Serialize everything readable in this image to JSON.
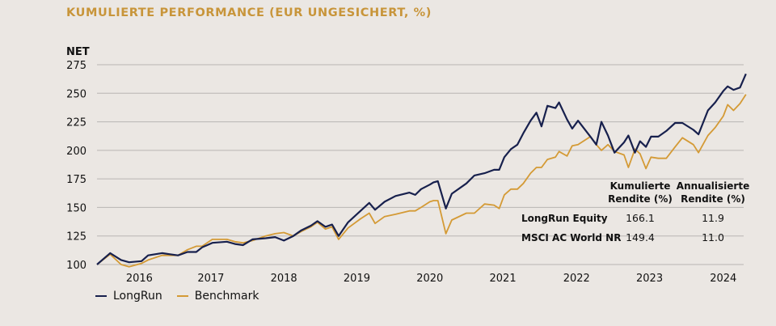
{
  "chart_data": {
    "type": "line",
    "title": "KUMULIERTE PERFORMANCE (EUR UNGESICHERT, %)",
    "ylabel": "NET",
    "xlabel": "",
    "ylim": [
      100,
      275
    ],
    "xlim": [
      2015.5,
      2024.35
    ],
    "yticks": [
      100,
      125,
      150,
      175,
      200,
      225,
      250,
      275
    ],
    "xticks": [
      {
        "label": "2016",
        "x": 2016.08
      },
      {
        "label": "2017",
        "x": 2017.06
      },
      {
        "label": "2018",
        "x": 2018.06
      },
      {
        "label": "2019",
        "x": 2019.06
      },
      {
        "label": "2020",
        "x": 2020.06
      },
      {
        "label": "2021",
        "x": 2021.06
      },
      {
        "label": "2022",
        "x": 2022.07
      },
      {
        "label": "2023",
        "x": 2023.07
      },
      {
        "label": "2024",
        "x": 2024.08
      }
    ],
    "grid": true,
    "legend_position": "bottom-left",
    "series": [
      {
        "name": "LongRun",
        "color": "#17204d",
        "points": [
          [
            2015.5,
            100
          ],
          [
            2015.68,
            110
          ],
          [
            2015.83,
            104
          ],
          [
            2015.94,
            102
          ],
          [
            2016.11,
            103
          ],
          [
            2016.2,
            108
          ],
          [
            2016.39,
            110
          ],
          [
            2016.5,
            109
          ],
          [
            2016.61,
            108
          ],
          [
            2016.74,
            111
          ],
          [
            2016.86,
            111
          ],
          [
            2016.94,
            115
          ],
          [
            2017.08,
            119
          ],
          [
            2017.28,
            120
          ],
          [
            2017.39,
            118
          ],
          [
            2017.5,
            117
          ],
          [
            2017.63,
            122
          ],
          [
            2017.81,
            123
          ],
          [
            2017.94,
            124
          ],
          [
            2018.06,
            121
          ],
          [
            2018.19,
            125
          ],
          [
            2018.3,
            130
          ],
          [
            2018.43,
            134
          ],
          [
            2018.52,
            138
          ],
          [
            2018.63,
            133
          ],
          [
            2018.72,
            135
          ],
          [
            2018.81,
            125
          ],
          [
            2018.94,
            137
          ],
          [
            2019.11,
            147
          ],
          [
            2019.23,
            154
          ],
          [
            2019.31,
            148
          ],
          [
            2019.44,
            155
          ],
          [
            2019.59,
            160
          ],
          [
            2019.78,
            163
          ],
          [
            2019.86,
            161
          ],
          [
            2019.94,
            166
          ],
          [
            2020.06,
            170
          ],
          [
            2020.11,
            172
          ],
          [
            2020.17,
            173
          ],
          [
            2020.28,
            149
          ],
          [
            2020.36,
            162
          ],
          [
            2020.56,
            171
          ],
          [
            2020.67,
            178
          ],
          [
            2020.81,
            180
          ],
          [
            2020.94,
            183
          ],
          [
            2021.01,
            183
          ],
          [
            2021.08,
            194
          ],
          [
            2021.17,
            201
          ],
          [
            2021.26,
            205
          ],
          [
            2021.34,
            215
          ],
          [
            2021.44,
            226
          ],
          [
            2021.52,
            233
          ],
          [
            2021.59,
            221
          ],
          [
            2021.67,
            239
          ],
          [
            2021.78,
            237
          ],
          [
            2021.83,
            242
          ],
          [
            2021.94,
            227
          ],
          [
            2022.01,
            219
          ],
          [
            2022.09,
            226
          ],
          [
            2022.26,
            212
          ],
          [
            2022.34,
            205
          ],
          [
            2022.41,
            225
          ],
          [
            2022.5,
            213
          ],
          [
            2022.59,
            198
          ],
          [
            2022.72,
            207
          ],
          [
            2022.78,
            213
          ],
          [
            2022.87,
            198
          ],
          [
            2022.94,
            208
          ],
          [
            2023.02,
            203
          ],
          [
            2023.09,
            212
          ],
          [
            2023.19,
            212
          ],
          [
            2023.3,
            217
          ],
          [
            2023.42,
            224
          ],
          [
            2023.52,
            224
          ],
          [
            2023.67,
            218
          ],
          [
            2023.74,
            214
          ],
          [
            2023.87,
            235
          ],
          [
            2023.97,
            242
          ],
          [
            2024.08,
            252
          ],
          [
            2024.14,
            256
          ],
          [
            2024.22,
            253
          ],
          [
            2024.31,
            255
          ],
          [
            2024.39,
            267
          ]
        ]
      },
      {
        "name": "Benchmark",
        "color": "#d49a35",
        "points": [
          [
            2015.5,
            100
          ],
          [
            2015.68,
            109
          ],
          [
            2015.83,
            100
          ],
          [
            2015.94,
            98
          ],
          [
            2016.11,
            101
          ],
          [
            2016.2,
            104
          ],
          [
            2016.39,
            108
          ],
          [
            2016.5,
            108
          ],
          [
            2016.61,
            108
          ],
          [
            2016.74,
            113
          ],
          [
            2016.86,
            116
          ],
          [
            2016.94,
            116
          ],
          [
            2017.08,
            122
          ],
          [
            2017.28,
            122
          ],
          [
            2017.39,
            120
          ],
          [
            2017.5,
            119
          ],
          [
            2017.63,
            121
          ],
          [
            2017.81,
            125
          ],
          [
            2017.94,
            127
          ],
          [
            2018.06,
            128
          ],
          [
            2018.19,
            125
          ],
          [
            2018.3,
            129
          ],
          [
            2018.43,
            133
          ],
          [
            2018.52,
            137
          ],
          [
            2018.63,
            131
          ],
          [
            2018.72,
            133
          ],
          [
            2018.81,
            122
          ],
          [
            2018.94,
            132
          ],
          [
            2019.11,
            140
          ],
          [
            2019.23,
            145
          ],
          [
            2019.31,
            136
          ],
          [
            2019.44,
            142
          ],
          [
            2019.59,
            144
          ],
          [
            2019.78,
            147
          ],
          [
            2019.86,
            147
          ],
          [
            2019.94,
            150
          ],
          [
            2020.06,
            155
          ],
          [
            2020.11,
            156
          ],
          [
            2020.17,
            156
          ],
          [
            2020.28,
            127
          ],
          [
            2020.36,
            139
          ],
          [
            2020.56,
            145
          ],
          [
            2020.67,
            145
          ],
          [
            2020.81,
            153
          ],
          [
            2020.94,
            152
          ],
          [
            2021.01,
            149
          ],
          [
            2021.08,
            161
          ],
          [
            2021.17,
            166
          ],
          [
            2021.26,
            166
          ],
          [
            2021.34,
            171
          ],
          [
            2021.44,
            180
          ],
          [
            2021.52,
            185
          ],
          [
            2021.59,
            185
          ],
          [
            2021.67,
            192
          ],
          [
            2021.78,
            194
          ],
          [
            2021.83,
            199
          ],
          [
            2021.94,
            195
          ],
          [
            2022.01,
            204
          ],
          [
            2022.09,
            205
          ],
          [
            2022.26,
            212
          ],
          [
            2022.34,
            205
          ],
          [
            2022.41,
            200
          ],
          [
            2022.5,
            205
          ],
          [
            2022.59,
            199
          ],
          [
            2022.72,
            196
          ],
          [
            2022.78,
            185
          ],
          [
            2022.87,
            201
          ],
          [
            2022.94,
            197
          ],
          [
            2023.02,
            184
          ],
          [
            2023.09,
            194
          ],
          [
            2023.19,
            193
          ],
          [
            2023.3,
            193
          ],
          [
            2023.42,
            203
          ],
          [
            2023.52,
            211
          ],
          [
            2023.67,
            205
          ],
          [
            2023.74,
            198
          ],
          [
            2023.87,
            213
          ],
          [
            2023.97,
            220
          ],
          [
            2024.08,
            230
          ],
          [
            2024.14,
            240
          ],
          [
            2024.22,
            235
          ],
          [
            2024.31,
            241
          ],
          [
            2024.39,
            249
          ]
        ]
      }
    ],
    "table": {
      "headers": [
        [
          "Kumulierte",
          "Rendite (%)"
        ],
        [
          "Annualisierte",
          "Rendite (%)"
        ]
      ],
      "rows": [
        {
          "label": "LongRun Equity",
          "cumulative": "166.1",
          "annualized": "11.9"
        },
        {
          "label": "MSCI AC World NR",
          "cumulative": "149.4",
          "annualized": "11.0"
        }
      ]
    }
  }
}
